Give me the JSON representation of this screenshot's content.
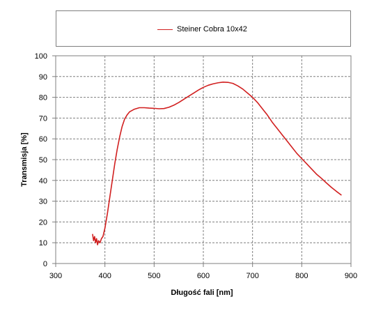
{
  "chart_data": {
    "type": "line",
    "title": "",
    "xlabel": "Długość fali [nm]",
    "ylabel": "Transmisja [%]",
    "xlim": [
      300,
      900
    ],
    "ylim": [
      0,
      100
    ],
    "x_ticks": [
      300,
      400,
      500,
      600,
      700,
      800,
      900
    ],
    "y_ticks": [
      0,
      10,
      20,
      30,
      40,
      50,
      60,
      70,
      80,
      90,
      100
    ],
    "x_tick_labels": [
      "300",
      "400",
      "500",
      "600",
      "700",
      "800",
      "900"
    ],
    "y_tick_labels": [
      "0",
      "10",
      "20",
      "30",
      "40",
      "50",
      "60",
      "70",
      "80",
      "90",
      "100"
    ],
    "grid": true,
    "legend_position": "top",
    "series": [
      {
        "name": "Steiner Cobra 10x42",
        "color": "#d11f1f",
        "points": [
          [
            375,
            14
          ],
          [
            377,
            11
          ],
          [
            379,
            13
          ],
          [
            381,
            10
          ],
          [
            383,
            12
          ],
          [
            385,
            9
          ],
          [
            387,
            11
          ],
          [
            390,
            10
          ],
          [
            393,
            12
          ],
          [
            396,
            13
          ],
          [
            400,
            17
          ],
          [
            405,
            24
          ],
          [
            410,
            32
          ],
          [
            415,
            40
          ],
          [
            420,
            48
          ],
          [
            425,
            55
          ],
          [
            430,
            61
          ],
          [
            435,
            66
          ],
          [
            440,
            69.5
          ],
          [
            445,
            71.5
          ],
          [
            450,
            73
          ],
          [
            460,
            74.3
          ],
          [
            470,
            75
          ],
          [
            480,
            75
          ],
          [
            490,
            74.8
          ],
          [
            500,
            74.7
          ],
          [
            510,
            74.5
          ],
          [
            520,
            74.6
          ],
          [
            530,
            75.2
          ],
          [
            540,
            76.2
          ],
          [
            550,
            77.5
          ],
          [
            560,
            79
          ],
          [
            570,
            80.5
          ],
          [
            580,
            82
          ],
          [
            590,
            83.5
          ],
          [
            600,
            84.8
          ],
          [
            610,
            85.8
          ],
          [
            620,
            86.5
          ],
          [
            630,
            87
          ],
          [
            640,
            87.3
          ],
          [
            650,
            87.2
          ],
          [
            660,
            86.7
          ],
          [
            670,
            85.5
          ],
          [
            680,
            84
          ],
          [
            690,
            82
          ],
          [
            700,
            80
          ],
          [
            710,
            77.5
          ],
          [
            720,
            74.5
          ],
          [
            730,
            71.5
          ],
          [
            740,
            68
          ],
          [
            750,
            65
          ],
          [
            760,
            62
          ],
          [
            770,
            59
          ],
          [
            780,
            56
          ],
          [
            790,
            53
          ],
          [
            800,
            50.5
          ],
          [
            810,
            48
          ],
          [
            820,
            45.5
          ],
          [
            830,
            43
          ],
          [
            840,
            41
          ],
          [
            850,
            38.8
          ],
          [
            860,
            36.7
          ],
          [
            870,
            34.8
          ],
          [
            880,
            33
          ]
        ]
      }
    ]
  }
}
